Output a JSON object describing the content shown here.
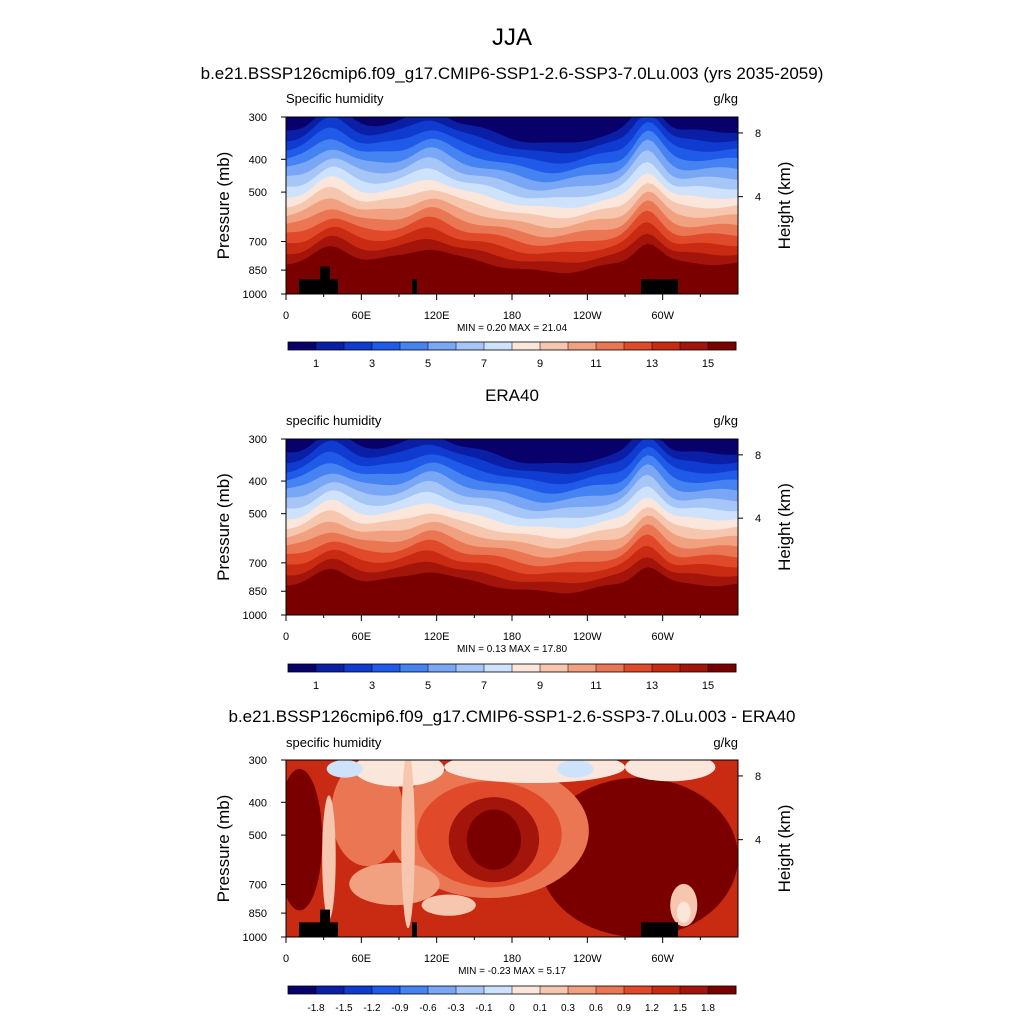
{
  "main_title": "JJA",
  "chart_data": [
    {
      "type": "heatmap",
      "title": "b.e21.BSSP126cmip6.f09_g17.CMIP6-SSP1-2.6-SSP3-7.0Lu.003 (yrs 2035-2059)",
      "left_label": "Specific humidity",
      "units": "g/kg",
      "ylabel": "Pressure (mb)",
      "ylabel_right": "Height (km)",
      "x_ticks": [
        "0",
        "60E",
        "120E",
        "180",
        "120W",
        "60W"
      ],
      "y_ticks": [
        "300",
        "400",
        "500",
        "700",
        "850",
        "1000"
      ],
      "y_right_ticks": [
        "8",
        "4"
      ],
      "stats_text": "MIN =   0.20  MAX =  21.04",
      "min": 0.2,
      "max": 21.04,
      "colorbar_ticks": [
        "1",
        "3",
        "5",
        "7",
        "9",
        "11",
        "13",
        "15"
      ],
      "colorbar_levels": [
        0,
        1,
        2,
        3,
        4,
        5,
        6,
        7,
        8,
        9,
        10,
        11,
        12,
        13,
        14,
        15,
        16
      ],
      "colormap": [
        "#08006b",
        "#0a1fa6",
        "#0f3bd0",
        "#1f5be8",
        "#4583f2",
        "#7aa7f5",
        "#a6c6f8",
        "#cfe2fb",
        "#fbe6dc",
        "#f7c6ae",
        "#f1a080",
        "#ea7653",
        "#e04a2a",
        "#c92a12",
        "#a3150a",
        "#7a0000"
      ],
      "has_topography": true
    },
    {
      "type": "heatmap",
      "title": "ERA40",
      "left_label": "specific humidity",
      "units": "g/kg",
      "ylabel": "Pressure (mb)",
      "ylabel_right": "Height (km)",
      "x_ticks": [
        "0",
        "60E",
        "120E",
        "180",
        "120W",
        "60W"
      ],
      "y_ticks": [
        "300",
        "400",
        "500",
        "700",
        "850",
        "1000"
      ],
      "y_right_ticks": [
        "8",
        "4"
      ],
      "stats_text": "MIN =   0.13  MAX =  17.80",
      "min": 0.13,
      "max": 17.8,
      "colorbar_ticks": [
        "1",
        "3",
        "5",
        "7",
        "9",
        "11",
        "13",
        "15"
      ],
      "colorbar_levels": [
        0,
        1,
        2,
        3,
        4,
        5,
        6,
        7,
        8,
        9,
        10,
        11,
        12,
        13,
        14,
        15,
        16
      ],
      "colormap": [
        "#08006b",
        "#0a1fa6",
        "#0f3bd0",
        "#1f5be8",
        "#4583f2",
        "#7aa7f5",
        "#a6c6f8",
        "#cfe2fb",
        "#fbe6dc",
        "#f7c6ae",
        "#f1a080",
        "#ea7653",
        "#e04a2a",
        "#c92a12",
        "#a3150a",
        "#7a0000"
      ],
      "has_topography": false
    },
    {
      "type": "heatmap",
      "title": "b.e21.BSSP126cmip6.f09_g17.CMIP6-SSP1-2.6-SSP3-7.0Lu.003 - ERA40",
      "left_label": "specific humidity",
      "units": "g/kg",
      "ylabel": "Pressure (mb)",
      "ylabel_right": "Height (km)",
      "x_ticks": [
        "0",
        "60E",
        "120E",
        "180",
        "120W",
        "60W"
      ],
      "y_ticks": [
        "300",
        "400",
        "500",
        "700",
        "850",
        "1000"
      ],
      "y_right_ticks": [
        "8",
        "4"
      ],
      "stats_text": "MIN =  -0.23  MAX =   5.17",
      "min": -0.23,
      "max": 5.17,
      "colorbar_ticks": [
        "-1.8",
        "-1.5",
        "-1.2",
        "-0.9",
        "-0.6",
        "-0.3",
        "-0.1",
        "0",
        "0.1",
        "0.3",
        "0.6",
        "0.9",
        "1.2",
        "1.5",
        "1.8"
      ],
      "colorbar_levels": [
        -1.8,
        -1.5,
        -1.2,
        -0.9,
        -0.6,
        -0.3,
        -0.1,
        0,
        0.1,
        0.3,
        0.6,
        0.9,
        1.2,
        1.5,
        1.8
      ],
      "colormap": [
        "#08006b",
        "#0a1fa6",
        "#0f3bd0",
        "#1f5be8",
        "#4583f2",
        "#7aa7f5",
        "#a6c6f8",
        "#cfe2fb",
        "#fbe6dc",
        "#f7c6ae",
        "#f1a080",
        "#ea7653",
        "#e04a2a",
        "#c92a12",
        "#a3150a",
        "#7a0000"
      ],
      "has_topography": true
    }
  ]
}
